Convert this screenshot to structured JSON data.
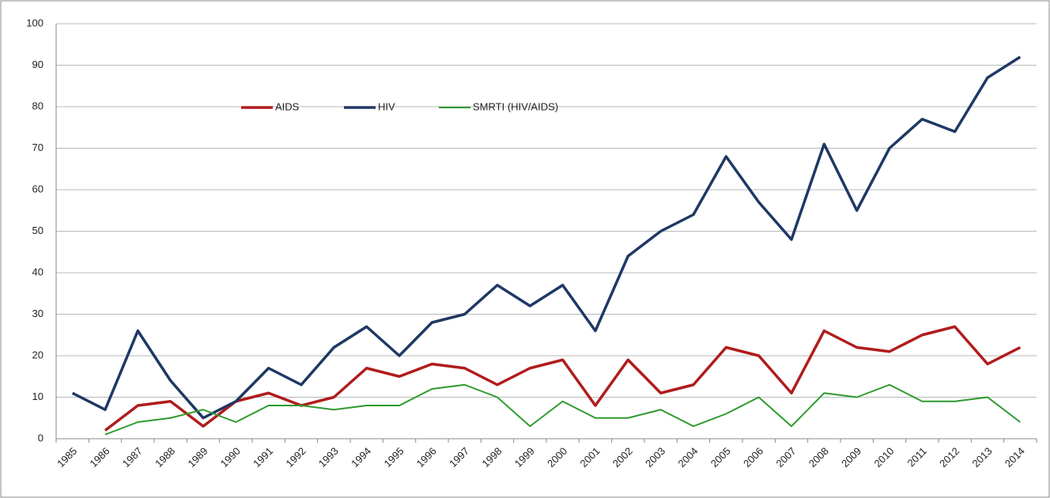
{
  "chart_data": {
    "type": "line",
    "categories": [
      "1985",
      "1986",
      "1987",
      "1988",
      "1989",
      "1990",
      "1991",
      "1992",
      "1993",
      "1994",
      "1995",
      "1996",
      "1997",
      "1998",
      "1999",
      "2000",
      "2001",
      "2002",
      "2003",
      "2004",
      "2005",
      "2006",
      "2007",
      "2008",
      "2009",
      "2010",
      "2011",
      "2012",
      "2013",
      "2014"
    ],
    "series": [
      {
        "name": "AIDS",
        "color": "#b01c1c",
        "values": [
          null,
          2,
          8,
          9,
          3,
          9,
          11,
          8,
          10,
          17,
          15,
          18,
          17,
          13,
          17,
          19,
          8,
          19,
          11,
          13,
          22,
          20,
          11,
          26,
          22,
          21,
          25,
          27,
          18,
          22
        ]
      },
      {
        "name": "HIV",
        "color": "#1f3864",
        "values": [
          11,
          7,
          26,
          14,
          5,
          9,
          17,
          13,
          22,
          27,
          20,
          28,
          30,
          37,
          32,
          37,
          26,
          44,
          50,
          54,
          68,
          57,
          48,
          71,
          55,
          70,
          77,
          74,
          87,
          92
        ]
      },
      {
        "name": "SMRTI (HIV/AIDS)",
        "color": "#2e9a2e",
        "values": [
          null,
          1,
          4,
          5,
          7,
          4,
          8,
          8,
          7,
          8,
          8,
          12,
          13,
          10,
          3,
          9,
          5,
          5,
          7,
          3,
          6,
          10,
          3,
          11,
          10,
          13,
          9,
          9,
          10,
          4
        ]
      }
    ],
    "ylim": [
      0,
      100
    ],
    "yticks": [
      0,
      10,
      20,
      30,
      40,
      50,
      60,
      70,
      80,
      90,
      100
    ],
    "grid": true,
    "legend": "top"
  }
}
